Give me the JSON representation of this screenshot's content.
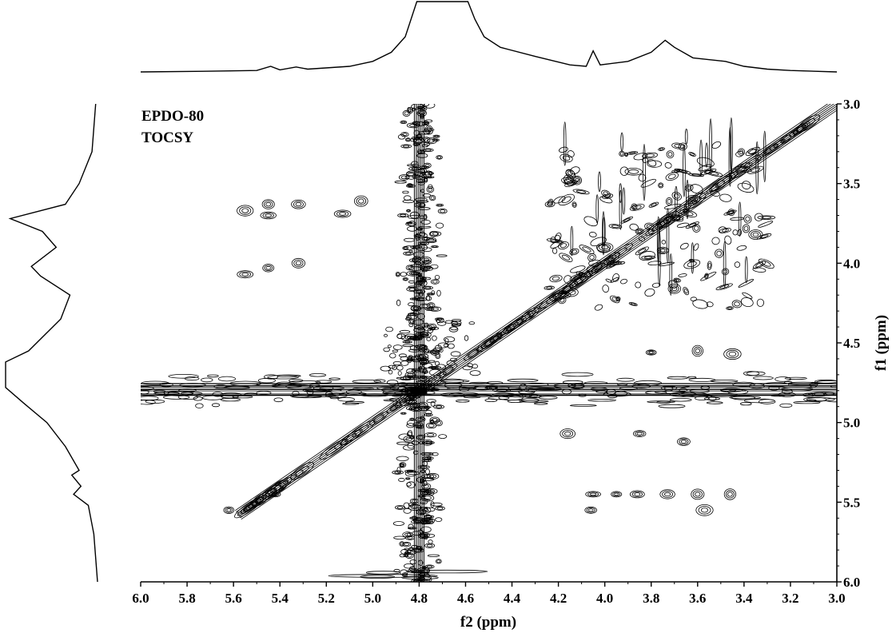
{
  "chart_data": {
    "type": "contour",
    "subtype": "2D NMR TOCSY spectrum with 1D projections",
    "sample_label": "EPDO-80",
    "experiment_label": "TOCSY",
    "xlabel": "f2 (ppm)",
    "ylabel": "f1 (ppm)",
    "x_axis": {
      "range": [
        6.0,
        3.0
      ],
      "reversed": true,
      "ticks": [
        "6.0",
        "5.8",
        "5.6",
        "5.4",
        "5.2",
        "5.0",
        "4.8",
        "4.6",
        "4.4",
        "4.2",
        "4.0",
        "3.8",
        "3.6",
        "3.4",
        "3.2",
        "3.0"
      ]
    },
    "y_axis": {
      "range": [
        3.0,
        6.0
      ],
      "position": "right",
      "ticks": [
        "3.0",
        "3.5",
        "4.0",
        "4.5",
        "5.0",
        "5.5",
        "6.0"
      ]
    },
    "grid": false,
    "colors": {
      "contour": "#000000",
      "background": "#ffffff"
    },
    "solvent_peak_ppm": 4.8,
    "diagonal": {
      "from": [
        5.58,
        5.58
      ],
      "to": [
        3.0,
        3.0
      ]
    },
    "cross_peaks": [
      {
        "f2": 5.45,
        "f1": 3.63
      },
      {
        "f2": 5.45,
        "f1": 3.7
      },
      {
        "f2": 5.45,
        "f1": 4.03
      },
      {
        "f2": 5.55,
        "f1": 3.67
      },
      {
        "f2": 5.55,
        "f1": 4.07
      },
      {
        "f2": 5.32,
        "f1": 3.63
      },
      {
        "f2": 5.32,
        "f1": 4.0
      },
      {
        "f2": 5.13,
        "f1": 3.69
      },
      {
        "f2": 5.05,
        "f1": 3.61
      },
      {
        "f2": 4.12,
        "f1": 3.48
      },
      {
        "f2": 4.0,
        "f1": 3.9
      },
      {
        "f2": 3.85,
        "f1": 3.8
      },
      {
        "f2": 3.75,
        "f1": 3.92
      },
      {
        "f2": 3.7,
        "f1": 4.16
      },
      {
        "f2": 3.62,
        "f1": 3.6
      },
      {
        "f2": 3.35,
        "f1": 3.82
      },
      {
        "f2": 3.8,
        "f1": 4.56
      },
      {
        "f2": 3.6,
        "f1": 4.55
      },
      {
        "f2": 3.45,
        "f1": 4.57
      },
      {
        "f2": 4.18,
        "f1": 4.2
      },
      {
        "f2": 4.05,
        "f1": 5.45
      },
      {
        "f2": 3.95,
        "f1": 5.45
      },
      {
        "f2": 3.86,
        "f1": 5.45
      },
      {
        "f2": 3.73,
        "f1": 5.45
      },
      {
        "f2": 3.6,
        "f1": 5.45
      },
      {
        "f2": 3.46,
        "f1": 5.45
      },
      {
        "f2": 3.57,
        "f1": 5.55
      },
      {
        "f2": 4.06,
        "f1": 5.55
      },
      {
        "f2": 3.66,
        "f1": 5.12
      },
      {
        "f2": 3.85,
        "f1": 5.07
      },
      {
        "f2": 4.16,
        "f1": 5.07
      },
      {
        "f2": 5.42,
        "f1": 5.45
      },
      {
        "f2": 5.62,
        "f1": 5.55
      }
    ],
    "projection_top": {
      "axis": "f2",
      "points": [
        [
          6.0,
          0.0
        ],
        [
          5.7,
          0.01
        ],
        [
          5.5,
          0.02
        ],
        [
          5.44,
          0.08
        ],
        [
          5.4,
          0.03
        ],
        [
          5.33,
          0.07
        ],
        [
          5.28,
          0.04
        ],
        [
          5.1,
          0.08
        ],
        [
          5.0,
          0.15
        ],
        [
          4.92,
          0.28
        ],
        [
          4.86,
          0.5
        ],
        [
          4.83,
          0.8
        ],
        [
          4.81,
          1.0
        ],
        [
          4.59,
          1.0
        ],
        [
          4.56,
          0.75
        ],
        [
          4.52,
          0.5
        ],
        [
          4.45,
          0.35
        ],
        [
          4.3,
          0.22
        ],
        [
          4.15,
          0.1
        ],
        [
          4.08,
          0.08
        ],
        [
          4.05,
          0.3
        ],
        [
          4.02,
          0.1
        ],
        [
          3.9,
          0.15
        ],
        [
          3.8,
          0.28
        ],
        [
          3.74,
          0.45
        ],
        [
          3.7,
          0.35
        ],
        [
          3.62,
          0.2
        ],
        [
          3.48,
          0.15
        ],
        [
          3.4,
          0.08
        ],
        [
          3.3,
          0.04
        ],
        [
          3.2,
          0.02
        ],
        [
          3.0,
          0.0
        ]
      ]
    },
    "projection_left": {
      "axis": "f1",
      "points": [
        [
          3.0,
          0.02
        ],
        [
          3.3,
          0.06
        ],
        [
          3.5,
          0.2
        ],
        [
          3.63,
          0.35
        ],
        [
          3.72,
          0.95
        ],
        [
          3.8,
          0.6
        ],
        [
          3.9,
          0.45
        ],
        [
          4.02,
          0.72
        ],
        [
          4.08,
          0.62
        ],
        [
          4.2,
          0.3
        ],
        [
          4.35,
          0.4
        ],
        [
          4.55,
          0.75
        ],
        [
          4.62,
          1.0
        ],
        [
          4.78,
          1.0
        ],
        [
          4.88,
          0.8
        ],
        [
          5.0,
          0.55
        ],
        [
          5.15,
          0.35
        ],
        [
          5.3,
          0.2
        ],
        [
          5.33,
          0.28
        ],
        [
          5.4,
          0.18
        ],
        [
          5.45,
          0.26
        ],
        [
          5.52,
          0.1
        ],
        [
          5.7,
          0.04
        ],
        [
          6.0,
          0.0
        ]
      ]
    }
  }
}
